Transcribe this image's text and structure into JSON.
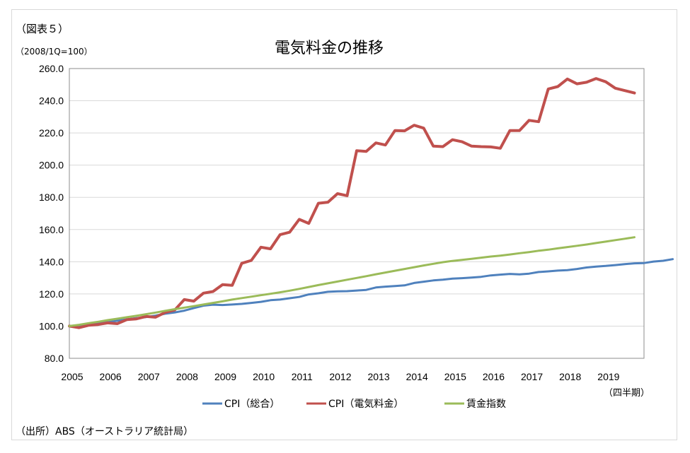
{
  "figure_label": "（図表５）",
  "unit_label": "（2008/1Q=100）",
  "period_label": "（四半期）",
  "source": "（出所）ABS（オーストラリア統計局）",
  "chart_data": {
    "type": "line",
    "title": "電気料金の推移",
    "xlabel": "",
    "ylabel": "",
    "x_tick_labels": [
      "2005",
      "2006",
      "2007",
      "2008",
      "2009",
      "2010",
      "2011",
      "2012",
      "2013",
      "2014",
      "2015",
      "2016",
      "2017",
      "2018",
      "2019"
    ],
    "x_range": [
      2005.0,
      2020.0
    ],
    "ylim": [
      80,
      260
    ],
    "y_tick_labels": [
      "80.0",
      "100.0",
      "120.0",
      "140.0",
      "160.0",
      "180.0",
      "200.0",
      "220.0",
      "240.0",
      "260.0"
    ],
    "grid": true,
    "legend_position": "bottom",
    "series": [
      {
        "name": "CPI（総合）",
        "color": "#4f81bd",
        "x_start": 2005.0,
        "x_step": 0.25,
        "values": [
          100.0,
          100.5,
          101.3,
          101.8,
          102.5,
          103.3,
          104.2,
          105.0,
          105.6,
          106.5,
          107.7,
          108.5,
          109.6,
          111.2,
          112.7,
          113.3,
          113.1,
          113.4,
          113.8,
          114.4,
          115.1,
          116.1,
          116.5,
          117.3,
          118.1,
          119.7,
          120.4,
          121.3,
          121.6,
          121.7,
          122.1,
          122.5,
          124.0,
          124.5,
          124.9,
          125.3,
          126.8,
          127.6,
          128.4,
          128.8,
          129.5,
          129.8,
          130.2,
          130.6,
          131.5,
          132.0,
          132.4,
          132.1,
          132.6,
          133.6,
          134.0,
          134.5,
          134.8,
          135.5,
          136.4,
          137.0,
          137.4,
          137.9,
          138.5,
          139.0,
          139.2,
          140.1,
          140.6,
          141.6
        ]
      },
      {
        "name": "CPI（電気料金）",
        "color": "#c0504d",
        "x_start": 2005.0,
        "x_step": 0.25,
        "values": [
          100.0,
          99.0,
          100.5,
          101.0,
          102.0,
          101.5,
          104.0,
          104.5,
          106.0,
          105.5,
          108.5,
          110.0,
          116.5,
          115.5,
          120.5,
          121.5,
          125.8,
          125.3,
          139.0,
          140.8,
          149.0,
          148.0,
          156.8,
          158.3,
          166.3,
          163.8,
          176.3,
          177.0,
          182.3,
          181.0,
          209.0,
          208.5,
          213.8,
          212.5,
          221.5,
          221.3,
          224.8,
          223.0,
          211.8,
          211.5,
          215.8,
          214.5,
          211.8,
          211.5,
          211.3,
          210.5,
          221.5,
          221.5,
          227.8,
          227.0,
          247.3,
          248.8,
          253.5,
          250.5,
          251.5,
          253.8,
          251.8,
          247.8,
          246.3,
          244.8
        ]
      },
      {
        "name": "賃金指数",
        "color": "#9bbb59",
        "x_start": 2005.0,
        "x_step": 0.25,
        "values": [
          100.0,
          100.8,
          101.8,
          102.7,
          103.7,
          104.6,
          105.5,
          106.4,
          107.4,
          108.4,
          109.5,
          110.5,
          111.5,
          112.4,
          113.4,
          114.4,
          115.4,
          116.5,
          117.4,
          118.3,
          119.2,
          120.1,
          121.0,
          122.0,
          123.1,
          124.3,
          125.5,
          126.6,
          127.7,
          128.8,
          129.9,
          131.0,
          132.2,
          133.3,
          134.4,
          135.5,
          136.6,
          137.7,
          138.7,
          139.7,
          140.5,
          141.1,
          141.8,
          142.5,
          143.2,
          143.8,
          144.5,
          145.3,
          146.0,
          146.8,
          147.5,
          148.3,
          149.1,
          149.9,
          150.7,
          151.6,
          152.5,
          153.4,
          154.3,
          155.2
        ]
      }
    ]
  }
}
